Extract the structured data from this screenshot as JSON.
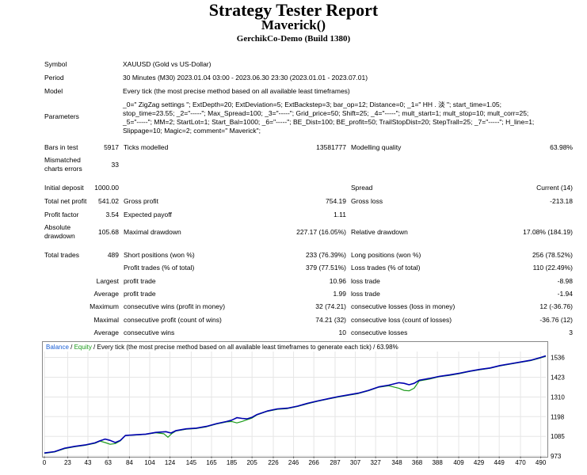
{
  "header": {
    "title": "Strategy Tester Report",
    "expert": "Maverick()",
    "server": "GerchikCo-Demo (Build 1380)"
  },
  "info": {
    "symbol_label": "Symbol",
    "symbol_value": "XAUUSD (Gold vs US-Dollar)",
    "period_label": "Period",
    "period_value": "30 Minutes (M30) 2023.01.04 03:00 - 2023.06.30 23:30 (2023.01.01 - 2023.07.01)",
    "model_label": "Model",
    "model_value": "Every tick (the most precise method based on all available least timeframes)",
    "parameters_label": "Parameters",
    "parameters_lines": [
      "_0=\" ZigZag settings \"; ExtDepth=20; ExtDeviation=5; ExtBackstep=3; bar_op=12; Distance=0; _1=\" HH . 淡 \"; start_time=1.05;",
      "stop_time=23.55; _2=\"-----\"; Max_Spread=100; _3=\"-----\"; Grid_price=50; Shift=25; _4=\"-----\"; mult_start=1; mult_stop=10; mult_corr=25;",
      "_5=\"-----\"; MM=2; StartLot=1; Start_Bal=1000; _6=\"-----\"; BE_Dist=100; BE_profit=50; TrailStopDist=20; StepTrall=25; _7=\"-----\"; H_line=1;",
      "Slippage=10; Magic=2; comment=\" Maverick\";"
    ]
  },
  "stats": {
    "bars_label": "Bars in test",
    "bars_value": "5917",
    "ticks_label": "Ticks modelled",
    "ticks_value": "13581777",
    "quality_label": "Modelling quality",
    "quality_value": "63.98%",
    "mismatch_label_1": "Mismatched",
    "mismatch_label_2": "charts errors",
    "mismatch_value": "33",
    "deposit_label": "Initial deposit",
    "deposit_value": "1000.00",
    "spread_label": "Spread",
    "spread_value": "Current (14)",
    "netprofit_label": "Total net profit",
    "netprofit_value": "541.02",
    "grossprofit_label": "Gross profit",
    "grossprofit_value": "754.19",
    "grossloss_label": "Gross loss",
    "grossloss_value": "-213.18",
    "pf_label": "Profit factor",
    "pf_value": "3.54",
    "payoff_label": "Expected payoff",
    "payoff_value": "1.11",
    "absdd_label_1": "Absolute",
    "absdd_label_2": "drawdown",
    "absdd_value": "105.68",
    "maxdd_label": "Maximal drawdown",
    "maxdd_value": "227.17 (16.05%)",
    "reldd_label": "Relative drawdown",
    "reldd_value": "17.08% (184.19)",
    "trades_label": "Total trades",
    "trades_value": "489",
    "short_label": "Short positions (won %)",
    "short_value": "233 (76.39%)",
    "long_label": "Long positions (won %)",
    "long_value": "256 (78.52%)",
    "pt_label": "Profit trades (% of total)",
    "pt_value": "379 (77.51%)",
    "lt_label": "Loss trades (% of total)",
    "lt_value": "110 (22.49%)",
    "largest_label": "Largest",
    "largest_pt_label": "profit trade",
    "largest_pt_value": "10.96",
    "largest_lt_label": "loss trade",
    "largest_lt_value": "-8.98",
    "average_label": "Average",
    "avg_pt_label": "profit trade",
    "avg_pt_value": "1.99",
    "avg_lt_label": "loss trade",
    "avg_lt_value": "-1.94",
    "maximum_label": "Maximum",
    "max_cw_label": "consecutive wins (profit in money)",
    "max_cw_value": "32 (74.21)",
    "max_cl_label": "consecutive losses (loss in money)",
    "max_cl_value": "12 (-36.76)",
    "maximal_label": "Maximal",
    "maxl_cp_label": "consecutive profit (count of wins)",
    "maxl_cp_value": "74.21 (32)",
    "maxl_cl_label": "consecutive loss (count of losses)",
    "maxl_cl_value": "-36.76 (12)",
    "average2_label": "Average",
    "avg_cw_label": "consecutive wins",
    "avg_cw_value": "10",
    "avg_cl_label": "consecutive losses",
    "avg_cl_value": "3"
  },
  "chart_data": {
    "type": "line",
    "legend_prefix": "Balance",
    "legend_sep": " / ",
    "legend_equity": "Equity",
    "legend_rest": " / Every tick (the most precise method based on all available least timeframes to generate each tick) / 63.98%",
    "x_ticks": [
      0,
      23,
      43,
      63,
      84,
      104,
      124,
      145,
      165,
      185,
      205,
      226,
      246,
      266,
      287,
      307,
      327,
      348,
      368,
      388,
      409,
      429,
      449,
      470,
      490
    ],
    "y_ticks": [
      973,
      1085,
      1198,
      1310,
      1423,
      1536
    ],
    "xlim": [
      0,
      495
    ],
    "ylim": [
      973,
      1570
    ],
    "colors": {
      "balance": "#0000b0",
      "equity": "#1a9a1a",
      "legend_balance": "#1a5fd6",
      "legend_equity": "#1a9a1a"
    },
    "series": [
      {
        "name": "Balance",
        "points": [
          [
            0,
            990
          ],
          [
            10,
            998
          ],
          [
            20,
            1018
          ],
          [
            30,
            1028
          ],
          [
            40,
            1036
          ],
          [
            50,
            1048
          ],
          [
            55,
            1060
          ],
          [
            60,
            1070
          ],
          [
            65,
            1062
          ],
          [
            70,
            1050
          ],
          [
            75,
            1062
          ],
          [
            80,
            1090
          ],
          [
            90,
            1094
          ],
          [
            100,
            1098
          ],
          [
            110,
            1108
          ],
          [
            120,
            1112
          ],
          [
            125,
            1104
          ],
          [
            130,
            1118
          ],
          [
            140,
            1128
          ],
          [
            150,
            1132
          ],
          [
            160,
            1142
          ],
          [
            170,
            1158
          ],
          [
            180,
            1170
          ],
          [
            185,
            1178
          ],
          [
            190,
            1192
          ],
          [
            195,
            1188
          ],
          [
            200,
            1185
          ],
          [
            205,
            1194
          ],
          [
            210,
            1210
          ],
          [
            220,
            1230
          ],
          [
            230,
            1242
          ],
          [
            240,
            1246
          ],
          [
            250,
            1258
          ],
          [
            260,
            1274
          ],
          [
            270,
            1288
          ],
          [
            280,
            1300
          ],
          [
            290,
            1312
          ],
          [
            300,
            1322
          ],
          [
            310,
            1332
          ],
          [
            320,
            1348
          ],
          [
            330,
            1368
          ],
          [
            340,
            1378
          ],
          [
            350,
            1392
          ],
          [
            355,
            1388
          ],
          [
            360,
            1380
          ],
          [
            365,
            1388
          ],
          [
            370,
            1406
          ],
          [
            380,
            1416
          ],
          [
            390,
            1428
          ],
          [
            400,
            1436
          ],
          [
            410,
            1446
          ],
          [
            420,
            1458
          ],
          [
            430,
            1468
          ],
          [
            440,
            1476
          ],
          [
            450,
            1490
          ],
          [
            460,
            1500
          ],
          [
            470,
            1510
          ],
          [
            480,
            1520
          ],
          [
            490,
            1536
          ],
          [
            495,
            1545
          ]
        ]
      },
      {
        "name": "Equity",
        "points": [
          [
            0,
            988
          ],
          [
            10,
            996
          ],
          [
            20,
            1015
          ],
          [
            30,
            1026
          ],
          [
            40,
            1034
          ],
          [
            50,
            1046
          ],
          [
            55,
            1058
          ],
          [
            60,
            1050
          ],
          [
            65,
            1040
          ],
          [
            70,
            1044
          ],
          [
            75,
            1060
          ],
          [
            80,
            1090
          ],
          [
            90,
            1093
          ],
          [
            100,
            1097
          ],
          [
            110,
            1106
          ],
          [
            118,
            1100
          ],
          [
            122,
            1080
          ],
          [
            126,
            1102
          ],
          [
            130,
            1116
          ],
          [
            140,
            1126
          ],
          [
            150,
            1130
          ],
          [
            160,
            1140
          ],
          [
            170,
            1156
          ],
          [
            180,
            1168
          ],
          [
            185,
            1170
          ],
          [
            190,
            1162
          ],
          [
            195,
            1170
          ],
          [
            200,
            1180
          ],
          [
            205,
            1190
          ],
          [
            210,
            1208
          ],
          [
            220,
            1228
          ],
          [
            230,
            1240
          ],
          [
            240,
            1244
          ],
          [
            250,
            1256
          ],
          [
            260,
            1272
          ],
          [
            270,
            1286
          ],
          [
            280,
            1298
          ],
          [
            290,
            1310
          ],
          [
            300,
            1320
          ],
          [
            310,
            1330
          ],
          [
            320,
            1346
          ],
          [
            330,
            1366
          ],
          [
            340,
            1374
          ],
          [
            350,
            1360
          ],
          [
            355,
            1348
          ],
          [
            360,
            1345
          ],
          [
            365,
            1360
          ],
          [
            370,
            1402
          ],
          [
            380,
            1412
          ],
          [
            390,
            1426
          ],
          [
            400,
            1434
          ],
          [
            410,
            1444
          ],
          [
            420,
            1456
          ],
          [
            430,
            1466
          ],
          [
            440,
            1474
          ],
          [
            450,
            1488
          ],
          [
            460,
            1498
          ],
          [
            470,
            1508
          ],
          [
            480,
            1518
          ],
          [
            490,
            1534
          ],
          [
            495,
            1543
          ]
        ]
      }
    ]
  }
}
